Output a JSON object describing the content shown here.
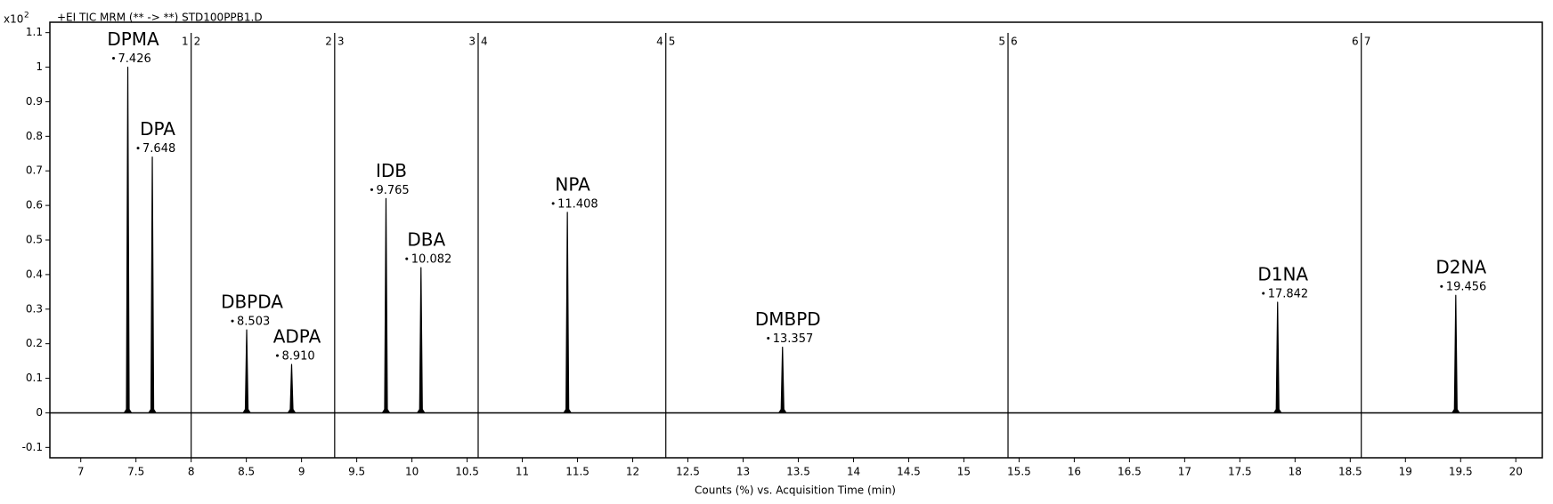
{
  "chart_data": {
    "type": "chromatogram",
    "title": "+EI TIC MRM (** -> **) STD100PPB1.D",
    "y_scale_base": "x10",
    "y_scale_exponent": "2",
    "x_label": "Counts (%) vs. Acquisition Time (min)",
    "color": "#000000",
    "categories": [
      "DPMA",
      "DPA",
      "DBPDA",
      "ADPA",
      "IDB",
      "DBA",
      "NPA",
      "DMBPD",
      "D1NA",
      "D2NA"
    ],
    "x": [
      7.426,
      7.648,
      8.503,
      8.91,
      9.765,
      10.082,
      11.408,
      13.357,
      17.842,
      19.456
    ],
    "x_labels": [
      "7.426",
      "7.648",
      "8.503",
      "8.910",
      "9.765",
      "10.082",
      "11.408",
      "13.357",
      "17.842",
      "19.456"
    ],
    "values": [
      1.0,
      0.74,
      0.24,
      0.14,
      0.62,
      0.42,
      0.58,
      0.19,
      0.32,
      0.34
    ],
    "segments": [
      {
        "x": 8.0,
        "left": "1",
        "right": "2"
      },
      {
        "x": 9.3,
        "left": "2",
        "right": "3"
      },
      {
        "x": 10.6,
        "left": "3",
        "right": "4"
      },
      {
        "x": 12.3,
        "left": "4",
        "right": "5"
      },
      {
        "x": 15.4,
        "left": "5",
        "right": "6"
      },
      {
        "x": 18.6,
        "left": "6",
        "right": "7"
      }
    ],
    "xlim": [
      6.72,
      20.24
    ],
    "ylim": [
      -0.13,
      1.13
    ],
    "xticks": [
      7,
      7.5,
      8,
      8.5,
      9,
      9.5,
      10,
      10.5,
      11,
      11.5,
      12,
      12.5,
      13,
      13.5,
      14,
      14.5,
      15,
      15.5,
      16,
      16.5,
      17,
      17.5,
      18,
      18.5,
      19,
      19.5,
      20
    ],
    "yticks": [
      -0.1,
      0,
      0.1,
      0.2,
      0.3,
      0.4,
      0.5,
      0.6,
      0.7,
      0.8,
      0.9,
      1,
      1.1
    ]
  }
}
